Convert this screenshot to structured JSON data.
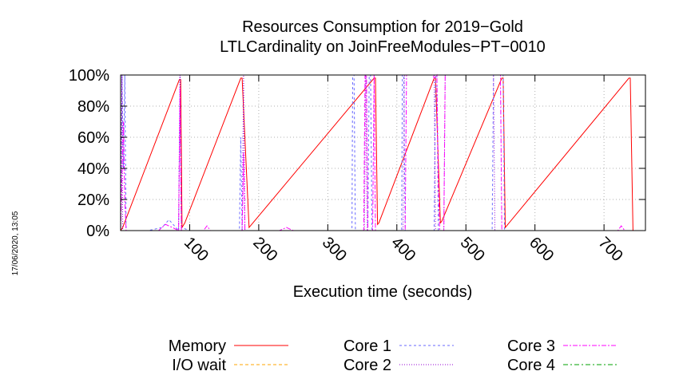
{
  "chart_data": {
    "type": "line",
    "title": "Resources Consumption for 2019−Gold",
    "subtitle": "LTLCardinality on JoinFreeModules−PT−0010",
    "xlabel": "Execution time (seconds)",
    "ylabel": "",
    "timestamp": "17/06/2020, 13:05",
    "xlim": [
      0,
      760
    ],
    "ylim": [
      0,
      100
    ],
    "xticks": [
      100,
      200,
      300,
      400,
      500,
      600,
      700
    ],
    "yticks": [
      0,
      20,
      40,
      60,
      80,
      100
    ],
    "ytick_labels": [
      "0%",
      "20%",
      "40%",
      "60%",
      "80%",
      "100%"
    ],
    "grid": true,
    "legend_placement": "bottom",
    "series": [
      {
        "name": "Memory",
        "color": "#ff0000",
        "dash": "solid",
        "points": [
          [
            0,
            0
          ],
          [
            3,
            2
          ],
          [
            85,
            97
          ],
          [
            87,
            97
          ],
          [
            89,
            2
          ],
          [
            93,
            5
          ],
          [
            174,
            98
          ],
          [
            176,
            98
          ],
          [
            186,
            2
          ],
          [
            188,
            3
          ],
          [
            367,
            98
          ],
          [
            369,
            98
          ],
          [
            372,
            4
          ],
          [
            374,
            5
          ],
          [
            454,
            98
          ],
          [
            456,
            98
          ],
          [
            463,
            5
          ],
          [
            465,
            6
          ],
          [
            552,
            98
          ],
          [
            554,
            98
          ],
          [
            557,
            2
          ],
          [
            559,
            3
          ],
          [
            736,
            98
          ],
          [
            738,
            98
          ],
          [
            742,
            0
          ],
          [
            760,
            0
          ]
        ]
      },
      {
        "name": "I/O wait",
        "color": "#ffa500",
        "dash": "4,3",
        "points": [
          [
            0,
            0
          ],
          [
            760,
            0
          ]
        ]
      },
      {
        "name": "Core 1",
        "color": "#6a6aff",
        "dash": "3,3",
        "points": [
          [
            0,
            0
          ],
          [
            2,
            100
          ],
          [
            4,
            40
          ],
          [
            6,
            100
          ],
          [
            8,
            0
          ],
          [
            40,
            0
          ],
          [
            60,
            2
          ],
          [
            70,
            7
          ],
          [
            78,
            3
          ],
          [
            84,
            0
          ],
          [
            86,
            85
          ],
          [
            88,
            2
          ],
          [
            100,
            0
          ],
          [
            170,
            0
          ],
          [
            172,
            0
          ],
          [
            174,
            60
          ],
          [
            176,
            0
          ],
          [
            335,
            0
          ],
          [
            336,
            100
          ],
          [
            338,
            100
          ],
          [
            340,
            0
          ],
          [
            358,
            0
          ],
          [
            360,
            100
          ],
          [
            362,
            100
          ],
          [
            364,
            0
          ],
          [
            407,
            0
          ],
          [
            408,
            100
          ],
          [
            410,
            100
          ],
          [
            412,
            0
          ],
          [
            454,
            0
          ],
          [
            456,
            100
          ],
          [
            458,
            100
          ],
          [
            460,
            0
          ],
          [
            538,
            0
          ],
          [
            540,
            100
          ],
          [
            554,
            100
          ],
          [
            556,
            0
          ],
          [
            760,
            0
          ]
        ]
      },
      {
        "name": "Core 2",
        "color": "#9400d3",
        "dash": "1,2",
        "points": [
          [
            0,
            0
          ],
          [
            2,
            100
          ],
          [
            3,
            0
          ],
          [
            84,
            0
          ],
          [
            86,
            100
          ],
          [
            88,
            0
          ],
          [
            176,
            0
          ],
          [
            178,
            100
          ],
          [
            180,
            0
          ],
          [
            353,
            0
          ],
          [
            355,
            100
          ],
          [
            357,
            0
          ],
          [
            409,
            0
          ],
          [
            411,
            100
          ],
          [
            454,
            100
          ],
          [
            456,
            0
          ],
          [
            468,
            0
          ],
          [
            470,
            100
          ],
          [
            540,
            100
          ],
          [
            542,
            0
          ],
          [
            760,
            0
          ]
        ]
      },
      {
        "name": "Core 3",
        "color": "#ff00ff",
        "dash": "6,2,2,2",
        "points": [
          [
            0,
            0
          ],
          [
            4,
            70
          ],
          [
            6,
            20
          ],
          [
            8,
            0
          ],
          [
            55,
            0
          ],
          [
            65,
            4
          ],
          [
            75,
            2
          ],
          [
            84,
            0
          ],
          [
            86,
            92
          ],
          [
            88,
            0
          ],
          [
            120,
            0
          ],
          [
            125,
            3
          ],
          [
            130,
            0
          ],
          [
            176,
            0
          ],
          [
            178,
            50
          ],
          [
            180,
            0
          ],
          [
            230,
            0
          ],
          [
            240,
            2
          ],
          [
            250,
            0
          ],
          [
            352,
            0
          ],
          [
            354,
            100
          ],
          [
            356,
            100
          ],
          [
            358,
            0
          ],
          [
            365,
            0
          ],
          [
            367,
            100
          ],
          [
            369,
            0
          ],
          [
            412,
            0
          ],
          [
            414,
            100
          ],
          [
            452,
            100
          ],
          [
            454,
            98
          ],
          [
            458,
            100
          ],
          [
            460,
            30
          ],
          [
            462,
            0
          ],
          [
            468,
            0
          ],
          [
            470,
            100
          ],
          [
            550,
            100
          ],
          [
            552,
            0
          ],
          [
            720,
            0
          ],
          [
            725,
            3
          ],
          [
            730,
            0
          ],
          [
            760,
            0
          ]
        ]
      },
      {
        "name": "Core 4",
        "color": "#00a000",
        "dash": "6,3,2,3",
        "points": [
          [
            0,
            100
          ],
          [
            760,
            100
          ]
        ]
      }
    ]
  }
}
